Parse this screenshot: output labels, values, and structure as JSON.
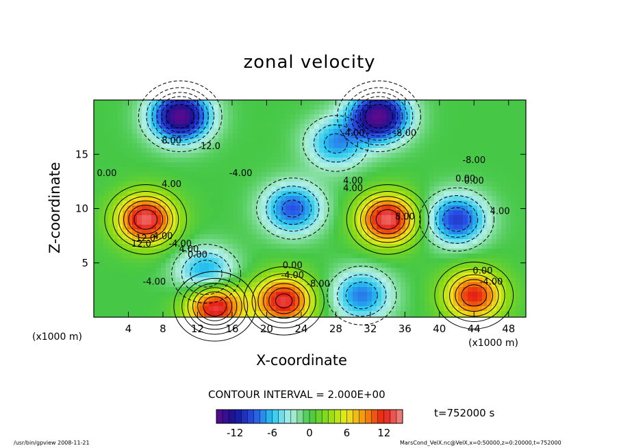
{
  "chart_data": {
    "type": "heatmap",
    "title": "zonal velocity",
    "xlabel": "X-coordinate",
    "ylabel": "Z-coordinate",
    "x_unit": "(x1000 m)",
    "xlim": [
      0,
      50
    ],
    "ylim": [
      0,
      20
    ],
    "x_ticks": [
      "4",
      "8",
      "12",
      "16",
      "20",
      "24",
      "28",
      "32",
      "36",
      "40",
      "44",
      "48"
    ],
    "y_ticks": [
      "5",
      "10",
      "15"
    ],
    "contour_interval_text": "CONTOUR INTERVAL = 2.000E+00",
    "time_text": "t=752000 s",
    "colorbar": {
      "range": [
        -15,
        15
      ],
      "ticks": [
        "-12",
        "-6",
        "0",
        "6",
        "12"
      ],
      "colors": [
        "#5a0a8c",
        "#141496",
        "#2850e6",
        "#28c8f0",
        "#b4f0e6",
        "#46c846",
        "#8cdc14",
        "#ebeb1e",
        "#f58c0a",
        "#e61e14",
        "#f08c8c"
      ]
    },
    "contour_labels": [
      "12.0",
      "8.00",
      "12.0",
      "-4.00",
      "-8.00",
      "0.00",
      "-4.00",
      "4.00",
      "0.00",
      "4.00",
      "-4.00",
      "4.00",
      "4.00",
      "12.0",
      "4.00",
      "0.00",
      "-4.00",
      "0.00",
      "-4.00",
      "-8.00",
      "0.00",
      "-4.00",
      "-8.00",
      "8.00",
      "4.00",
      "0.00"
    ],
    "features": [
      {
        "x": 6,
        "z": 9,
        "value": 14
      },
      {
        "x": 34,
        "z": 9,
        "value": 14
      },
      {
        "x": 14,
        "z": 1,
        "value": 14
      },
      {
        "x": 22,
        "z": 1.5,
        "value": 13
      },
      {
        "x": 44,
        "z": 2,
        "value": 12
      },
      {
        "x": 42,
        "z": 9,
        "value": -10
      },
      {
        "x": 23,
        "z": 10,
        "value": -9
      },
      {
        "x": 13,
        "z": 4,
        "value": -8
      },
      {
        "x": 31,
        "z": 2,
        "value": -8
      },
      {
        "x": 28,
        "z": 16,
        "value": -7
      },
      {
        "x": 10,
        "z": 18.5,
        "value": -15
      },
      {
        "x": 33,
        "z": 18.5,
        "value": -15
      }
    ]
  },
  "footer": {
    "left": "/usr/bin/gpview   2008-11-21",
    "right": "MarsCond_VelX.nc@VelX,x=0:50000,z=0:20000,t=752000"
  }
}
